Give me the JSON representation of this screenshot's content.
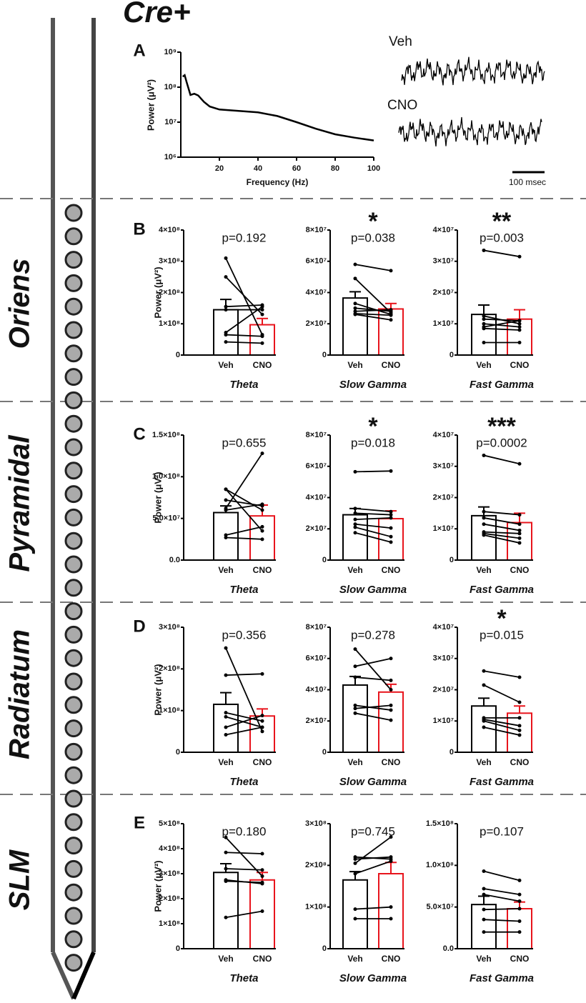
{
  "figure": {
    "title": "Cre+",
    "layers": [
      "Oriens",
      "Pyramidal",
      "Radiatum",
      "SLM"
    ],
    "trace_labels": [
      "Veh",
      "CNO"
    ],
    "scale_bar": "100 msec"
  },
  "chart_data": [
    {
      "type": "line",
      "panel_label": "A",
      "xlabel": "Frequency (Hz)",
      "ylabel": "Power (μV²)",
      "log_y": true,
      "x": [
        1,
        2,
        3,
        5,
        7,
        9,
        12,
        15,
        20,
        30,
        40,
        50,
        60,
        70,
        80,
        90,
        100
      ],
      "series": [
        {
          "color": "#000000",
          "values": [
            200000000,
            220000000,
            140000000,
            60000000,
            65000000,
            58000000,
            38000000,
            28000000,
            23000000,
            21000000,
            19000000,
            15000000,
            10000000,
            6500000,
            4500000,
            3600000,
            3000000
          ]
        }
      ],
      "xlim": [
        0,
        100
      ],
      "xticks": [
        20,
        40,
        60,
        80,
        100
      ],
      "ylim": [
        1000000,
        1000000000
      ],
      "yticks": [
        {
          "value": 1000000,
          "label": "10⁶"
        },
        {
          "value": 10000000,
          "label": "10⁷"
        },
        {
          "value": 100000000,
          "label": "10⁸"
        },
        {
          "value": 1000000000,
          "label": "10⁹"
        }
      ]
    },
    {
      "type": "bar",
      "panel_label": "B",
      "title": "Theta",
      "annotation": "p=0.192",
      "ylabel": "Power (μV²)",
      "categories": [
        "Veh",
        "CNO"
      ],
      "colors": [
        "#000000",
        "#e8141c"
      ],
      "values": [
        145000000,
        97000000
      ],
      "errors": [
        33000000,
        20000000
      ],
      "subjects": [
        [
          310000000,
          65000000
        ],
        [
          250000000,
          130000000
        ],
        [
          155000000,
          160000000
        ],
        [
          145000000,
          145000000
        ],
        [
          72000000,
          155000000
        ],
        [
          65000000,
          60000000
        ],
        [
          42000000,
          38000000
        ]
      ],
      "ylim": [
        0,
        400000000
      ],
      "yticks": [
        0,
        {
          "value": 100000000,
          "label": "1×10⁸"
        },
        {
          "value": 200000000,
          "label": "2×10⁸"
        },
        {
          "value": 300000000,
          "label": "3×10⁸"
        },
        {
          "value": 400000000,
          "label": "4×10⁸"
        }
      ]
    },
    {
      "type": "bar",
      "title": "Slow Gamma",
      "annotation": "p=0.038",
      "significance": "*",
      "categories": [
        "Veh",
        "CNO"
      ],
      "colors": [
        "#000000",
        "#e8141c"
      ],
      "values": [
        36500000,
        29500000
      ],
      "errors": [
        4000000,
        3500000
      ],
      "subjects": [
        [
          58000000,
          54000000
        ],
        [
          49000000,
          27000000
        ],
        [
          33000000,
          26000000
        ],
        [
          30000000,
          28000000
        ],
        [
          28000000,
          29000000
        ],
        [
          26500000,
          25500000
        ],
        [
          26000000,
          22500000
        ]
      ],
      "ylim": [
        0,
        80000000
      ],
      "yticks": [
        0,
        {
          "value": 20000000,
          "label": "2×10⁷"
        },
        {
          "value": 40000000,
          "label": "4×10⁷"
        },
        {
          "value": 60000000,
          "label": "6×10⁷"
        },
        {
          "value": 80000000,
          "label": "8×10⁷"
        }
      ]
    },
    {
      "type": "bar",
      "title": "Fast Gamma",
      "annotation": "p=0.003",
      "significance": "**",
      "categories": [
        "Veh",
        "CNO"
      ],
      "colors": [
        "#000000",
        "#e8141c"
      ],
      "values": [
        13000000,
        11500000
      ],
      "errors": [
        3000000,
        3000000
      ],
      "subjects": [
        [
          33500000,
          31500000
        ],
        [
          12500000,
          10000000
        ],
        [
          11500000,
          11000000
        ],
        [
          10000000,
          9000000
        ],
        [
          9000000,
          11000000
        ],
        [
          8500000,
          8000000
        ],
        [
          4000000,
          4000000
        ]
      ],
      "ylim": [
        0,
        40000000
      ],
      "yticks": [
        0,
        {
          "value": 10000000,
          "label": "1×10⁷"
        },
        {
          "value": 20000000,
          "label": "2×10⁷"
        },
        {
          "value": 30000000,
          "label": "3×10⁷"
        },
        {
          "value": 40000000,
          "label": "4×10⁷"
        }
      ]
    },
    {
      "type": "bar",
      "panel_label": "C",
      "title": "Theta",
      "annotation": "p=0.655",
      "ylabel": "Power (μV²)",
      "categories": [
        "Veh",
        "CNO"
      ],
      "colors": [
        "#000000",
        "#e8141c"
      ],
      "values": [
        57000000,
        53000000
      ],
      "errors": [
        8000000,
        13000000
      ],
      "subjects": [
        [
          85000000,
          35000000
        ],
        [
          85000000,
          60000000
        ],
        [
          72000000,
          65000000
        ],
        [
          62000000,
          128000000
        ],
        [
          60000000,
          67000000
        ],
        [
          30000000,
          40000000
        ],
        [
          27000000,
          25000000
        ]
      ],
      "ylim": [
        0,
        150000000
      ],
      "yticks": [
        {
          "value": 0,
          "label": "0.0"
        },
        {
          "value": 50000000,
          "label": "5.0×10⁷"
        },
        {
          "value": 100000000,
          "label": "1.0×10⁸"
        },
        {
          "value": 150000000,
          "label": "1.5×10⁸"
        }
      ]
    },
    {
      "type": "bar",
      "title": "Slow Gamma",
      "annotation": "p=0.018",
      "significance": "*",
      "categories": [
        "Veh",
        "CNO"
      ],
      "colors": [
        "#000000",
        "#e8141c"
      ],
      "values": [
        29000000,
        26500000
      ],
      "errors": [
        4000000,
        5000000
      ],
      "subjects": [
        [
          56500000,
          57000000
        ],
        [
          33000000,
          31000000
        ],
        [
          30000000,
          29000000
        ],
        [
          26000000,
          27000000
        ],
        [
          23000000,
          20500000
        ],
        [
          21000000,
          15000000
        ],
        [
          17500000,
          11500000
        ]
      ],
      "ylim": [
        0,
        80000000
      ],
      "yticks": [
        0,
        {
          "value": 20000000,
          "label": "2×10⁷"
        },
        {
          "value": 40000000,
          "label": "4×10⁷"
        },
        {
          "value": 60000000,
          "label": "6×10⁷"
        },
        {
          "value": 80000000,
          "label": "8×10⁷"
        }
      ]
    },
    {
      "type": "bar",
      "title": "Fast Gamma",
      "annotation": "p=0.0002",
      "significance": "***",
      "categories": [
        "Veh",
        "CNO"
      ],
      "colors": [
        "#000000",
        "#e8141c"
      ],
      "values": [
        14200000,
        12000000
      ],
      "errors": [
        2800000,
        3000000
      ],
      "subjects": [
        [
          33500000,
          30800000
        ],
        [
          15500000,
          14500000
        ],
        [
          13500000,
          11500000
        ],
        [
          11500000,
          9500000
        ],
        [
          9000000,
          8500000
        ],
        [
          8500000,
          7000000
        ],
        [
          8000000,
          5500000
        ]
      ],
      "ylim": [
        0,
        40000000
      ],
      "yticks": [
        0,
        {
          "value": 10000000,
          "label": "1×10⁷"
        },
        {
          "value": 20000000,
          "label": "2×10⁷"
        },
        {
          "value": 30000000,
          "label": "3×10⁷"
        },
        {
          "value": 40000000,
          "label": "4×10⁷"
        }
      ]
    },
    {
      "type": "bar",
      "panel_label": "D",
      "title": "Theta",
      "annotation": "p=0.356",
      "ylabel": "Power (μV²)",
      "categories": [
        "Veh",
        "CNO"
      ],
      "colors": [
        "#000000",
        "#e8141c"
      ],
      "values": [
        115000000,
        87000000
      ],
      "errors": [
        28000000,
        17000000
      ],
      "subjects": [
        [
          250000000,
          50000000
        ],
        [
          185000000,
          188000000
        ],
        [
          95000000,
          75000000
        ],
        [
          85000000,
          60000000
        ],
        [
          60000000,
          88000000
        ],
        [
          42000000,
          60000000
        ]
      ],
      "ylim": [
        0,
        300000000
      ],
      "yticks": [
        0,
        {
          "value": 100000000,
          "label": "1×10⁸"
        },
        {
          "value": 200000000,
          "label": "2×10⁸"
        },
        {
          "value": 300000000,
          "label": "3×10⁸"
        }
      ]
    },
    {
      "type": "bar",
      "title": "Slow Gamma",
      "annotation": "p=0.278",
      "categories": [
        "Veh",
        "CNO"
      ],
      "colors": [
        "#000000",
        "#e8141c"
      ],
      "values": [
        43000000,
        38500000
      ],
      "errors": [
        5500000,
        5000000
      ],
      "subjects": [
        [
          66000000,
          40000000
        ],
        [
          55000000,
          60000000
        ],
        [
          48000000,
          46000000
        ],
        [
          30000000,
          27000000
        ],
        [
          28000000,
          30000000
        ],
        [
          25000000,
          20500000
        ]
      ],
      "ylim": [
        0,
        80000000
      ],
      "yticks": [
        0,
        {
          "value": 20000000,
          "label": "2×10⁷"
        },
        {
          "value": 40000000,
          "label": "4×10⁷"
        },
        {
          "value": 60000000,
          "label": "6×10⁷"
        },
        {
          "value": 80000000,
          "label": "8×10⁷"
        }
      ]
    },
    {
      "type": "bar",
      "title": "Fast Gamma",
      "annotation": "p=0.015",
      "significance": "*",
      "categories": [
        "Veh",
        "CNO"
      ],
      "colors": [
        "#000000",
        "#e8141c"
      ],
      "values": [
        14800000,
        12500000
      ],
      "errors": [
        2500000,
        2300000
      ],
      "subjects": [
        [
          26000000,
          24000000
        ],
        [
          21500000,
          16000000
        ],
        [
          11000000,
          11000000
        ],
        [
          10500000,
          8500000
        ],
        [
          10000000,
          7000000
        ],
        [
          8000000,
          5500000
        ]
      ],
      "ylim": [
        0,
        40000000
      ],
      "yticks": [
        0,
        {
          "value": 10000000,
          "label": "1×10⁷"
        },
        {
          "value": 20000000,
          "label": "2×10⁷"
        },
        {
          "value": 30000000,
          "label": "3×10⁷"
        },
        {
          "value": 40000000,
          "label": "4×10⁷"
        }
      ]
    },
    {
      "type": "bar",
      "panel_label": "E",
      "title": "Theta",
      "annotation": "p=0.180",
      "ylabel": "Power (μV²)",
      "categories": [
        "Veh",
        "CNO"
      ],
      "colors": [
        "#000000",
        "#e8141c"
      ],
      "values": [
        305000000,
        275000000
      ],
      "errors": [
        35000000,
        30000000
      ],
      "subjects": [
        [
          445000000,
          290000000
        ],
        [
          385000000,
          380000000
        ],
        [
          320000000,
          315000000
        ],
        [
          275000000,
          260000000
        ],
        [
          270000000,
          265000000
        ],
        [
          125000000,
          150000000
        ]
      ],
      "ylim": [
        0,
        500000000
      ],
      "yticks": [
        0,
        {
          "value": 100000000,
          "label": "1×10⁸"
        },
        {
          "value": 200000000,
          "label": "2×10⁸"
        },
        {
          "value": 300000000,
          "label": "3×10⁸"
        },
        {
          "value": 400000000,
          "label": "4×10⁸"
        },
        {
          "value": 500000000,
          "label": "5×10⁸"
        }
      ]
    },
    {
      "type": "bar",
      "title": "Slow Gamma",
      "annotation": "p=0.745",
      "categories": [
        "Veh",
        "CNO"
      ],
      "colors": [
        "#000000",
        "#e8141c"
      ],
      "values": [
        165000000,
        180000000
      ],
      "errors": [
        20000000,
        27000000
      ],
      "subjects": [
        [
          220000000,
          215000000
        ],
        [
          215000000,
          220000000
        ],
        [
          205000000,
          268000000
        ],
        [
          180000000,
          210000000
        ],
        [
          95000000,
          100000000
        ],
        [
          72000000,
          72000000
        ]
      ],
      "ylim": [
        0,
        300000000
      ],
      "yticks": [
        0,
        {
          "value": 100000000,
          "label": "1×10⁸"
        },
        {
          "value": 200000000,
          "label": "2×10⁸"
        },
        {
          "value": 300000000,
          "label": "3×10⁸"
        }
      ]
    },
    {
      "type": "bar",
      "title": "Fast Gamma",
      "annotation": "p=0.107",
      "categories": [
        "Veh",
        "CNO"
      ],
      "colors": [
        "#000000",
        "#e8141c"
      ],
      "values": [
        53000000,
        48000000
      ],
      "errors": [
        10000000,
        8000000
      ],
      "subjects": [
        [
          93000000,
          82000000
        ],
        [
          72000000,
          65000000
        ],
        [
          65000000,
          57000000
        ],
        [
          47000000,
          48000000
        ],
        [
          35000000,
          33000000
        ],
        [
          20000000,
          20000000
        ]
      ],
      "ylim": [
        0,
        150000000
      ],
      "yticks": [
        {
          "value": 0,
          "label": "0.0"
        },
        {
          "value": 50000000,
          "label": "5.0×10⁷"
        },
        {
          "value": 100000000,
          "label": "1.0×10⁸"
        },
        {
          "value": 150000000,
          "label": "1.5×10⁸"
        }
      ]
    }
  ]
}
